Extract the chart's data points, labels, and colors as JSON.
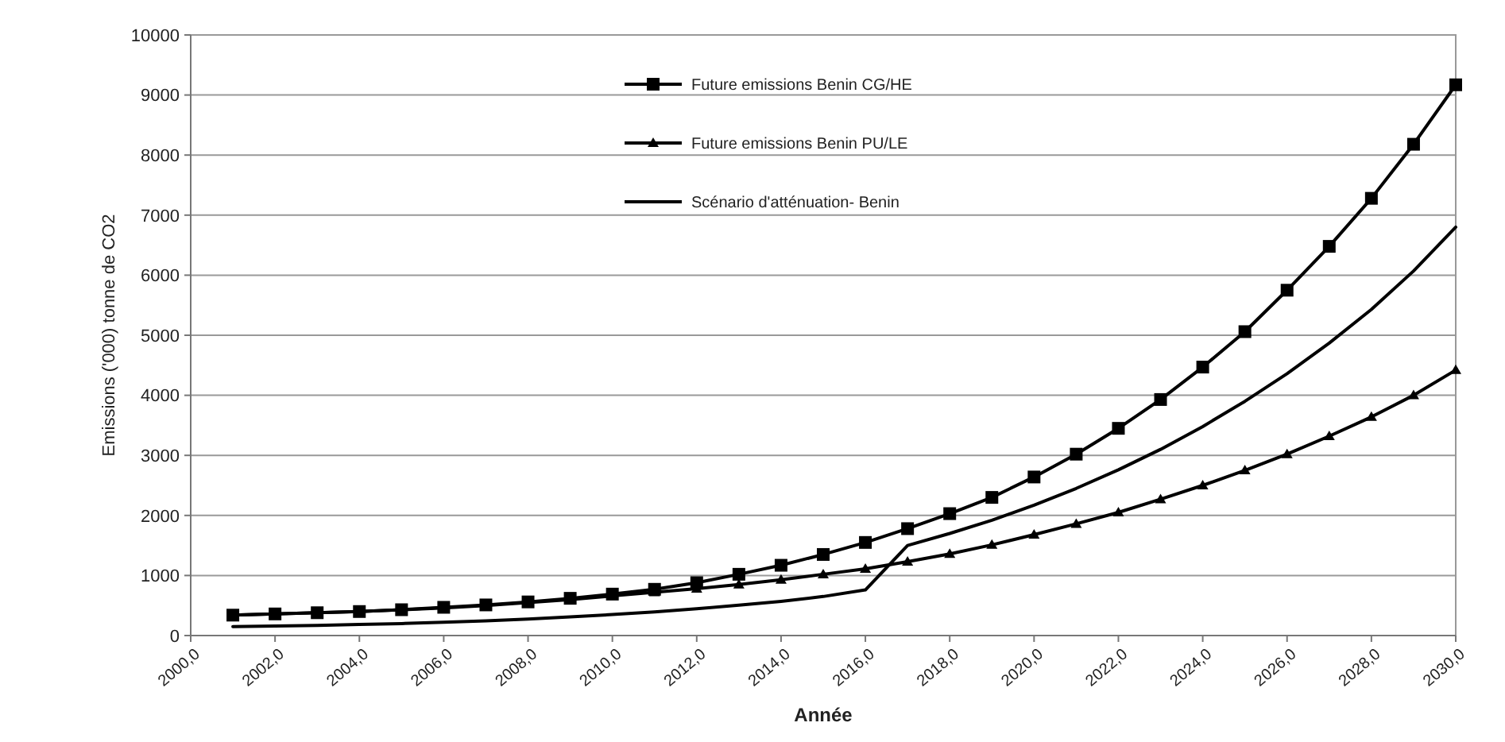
{
  "chart_data": {
    "type": "line",
    "xlabel": "Année",
    "ylabel": "Emissions ('000) tonne de CO2",
    "x": [
      2001,
      2002,
      2003,
      2004,
      2005,
      2006,
      2007,
      2008,
      2009,
      2010,
      2011,
      2012,
      2013,
      2014,
      2015,
      2016,
      2017,
      2018,
      2019,
      2020,
      2021,
      2022,
      2023,
      2024,
      2025,
      2026,
      2027,
      2028,
      2029,
      2030
    ],
    "series": [
      {
        "name": "Future emissions Benin CG/HE",
        "color": "#000000",
        "marker": "square",
        "values": [
          340,
          360,
          380,
          400,
          430,
          470,
          510,
          560,
          620,
          690,
          770,
          880,
          1020,
          1170,
          1350,
          1550,
          1780,
          2030,
          2300,
          2640,
          3020,
          3450,
          3930,
          4470,
          5060,
          5750,
          6480,
          7280,
          8180,
          9170
        ]
      },
      {
        "name": "Future emissions Benin PU/LE",
        "color": "#000000",
        "marker": "triangle",
        "values": [
          340,
          360,
          380,
          400,
          430,
          460,
          500,
          550,
          600,
          660,
          720,
          780,
          850,
          930,
          1020,
          1110,
          1230,
          1360,
          1510,
          1680,
          1860,
          2050,
          2270,
          2500,
          2750,
          3020,
          3320,
          3640,
          4000,
          4420
        ]
      },
      {
        "name": "Scénario d'atténuation- Benin",
        "color": "#000000",
        "marker": "none",
        "values": [
          150,
          160,
          170,
          185,
          200,
          220,
          245,
          275,
          310,
          350,
          395,
          445,
          505,
          570,
          650,
          760,
          1500,
          1700,
          1920,
          2170,
          2450,
          2760,
          3100,
          3480,
          3900,
          4360,
          4870,
          5430,
          6070,
          6800
        ]
      }
    ],
    "xlim": [
      2000,
      2030
    ],
    "xticks": [
      {
        "value": 2000,
        "label": "2000,0"
      },
      {
        "value": 2002,
        "label": "2002,0"
      },
      {
        "value": 2004,
        "label": "2004,0"
      },
      {
        "value": 2006,
        "label": "2006,0"
      },
      {
        "value": 2008,
        "label": "2008,0"
      },
      {
        "value": 2010,
        "label": "2010,0"
      },
      {
        "value": 2012,
        "label": "2012,0"
      },
      {
        "value": 2014,
        "label": "2014,0"
      },
      {
        "value": 2016,
        "label": "2016,0"
      },
      {
        "value": 2018,
        "label": "2018,0"
      },
      {
        "value": 2020,
        "label": "2020,0"
      },
      {
        "value": 2022,
        "label": "2022,0"
      },
      {
        "value": 2024,
        "label": "2024,0"
      },
      {
        "value": 2026,
        "label": "2026,0"
      },
      {
        "value": 2028,
        "label": "2028,0"
      },
      {
        "value": 2030,
        "label": "2030,0"
      }
    ],
    "ylim": [
      0,
      10000
    ],
    "yticks": [
      0,
      1000,
      2000,
      3000,
      4000,
      5000,
      6000,
      7000,
      8000,
      9000,
      10000
    ],
    "grid": "y",
    "legend": "top",
    "line_style": "solid"
  }
}
